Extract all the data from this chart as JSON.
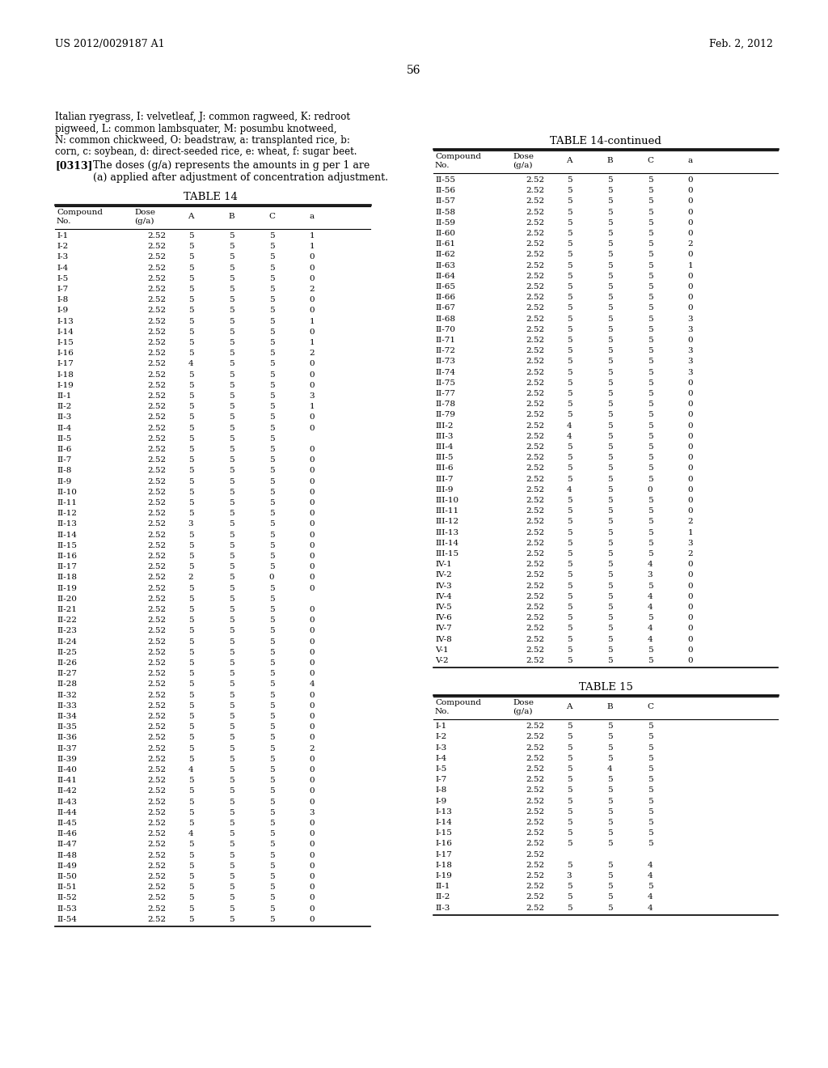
{
  "header_left": "US 2012/0029187 A1",
  "header_right": "Feb. 2, 2012",
  "page_number": "56",
  "intro_text": "Italian ryegrass, I: velvetleaf, J: common ragweed, K: redroot\npigweed, L: common lambsquater, M: posumbu knotweed,\nN: common chickweed, O: beadstraw, a: transplanted rice, b:\ncorn, c: soybean, d: direct-seeded rice, e: wheat, f: sugar beet.",
  "paragraph_label": "[0313]",
  "paragraph_text": "The doses (g/a) represents the amounts in g per 1 are\n(a) applied after adjustment of concentration adjustment.",
  "table14_title": "TABLE 14",
  "table14_data": [
    [
      "I-1",
      "2.52",
      "5",
      "5",
      "5",
      "1"
    ],
    [
      "I-2",
      "2.52",
      "5",
      "5",
      "5",
      "1"
    ],
    [
      "I-3",
      "2.52",
      "5",
      "5",
      "5",
      "0"
    ],
    [
      "I-4",
      "2.52",
      "5",
      "5",
      "5",
      "0"
    ],
    [
      "I-5",
      "2.52",
      "5",
      "5",
      "5",
      "0"
    ],
    [
      "I-7",
      "2.52",
      "5",
      "5",
      "5",
      "2"
    ],
    [
      "I-8",
      "2.52",
      "5",
      "5",
      "5",
      "0"
    ],
    [
      "I-9",
      "2.52",
      "5",
      "5",
      "5",
      "0"
    ],
    [
      "I-13",
      "2.52",
      "5",
      "5",
      "5",
      "1"
    ],
    [
      "I-14",
      "2.52",
      "5",
      "5",
      "5",
      "0"
    ],
    [
      "I-15",
      "2.52",
      "5",
      "5",
      "5",
      "1"
    ],
    [
      "I-16",
      "2.52",
      "5",
      "5",
      "5",
      "2"
    ],
    [
      "I-17",
      "2.52",
      "4",
      "5",
      "5",
      "0"
    ],
    [
      "I-18",
      "2.52",
      "5",
      "5",
      "5",
      "0"
    ],
    [
      "I-19",
      "2.52",
      "5",
      "5",
      "5",
      "0"
    ],
    [
      "II-1",
      "2.52",
      "5",
      "5",
      "5",
      "3"
    ],
    [
      "II-2",
      "2.52",
      "5",
      "5",
      "5",
      "1"
    ],
    [
      "II-3",
      "2.52",
      "5",
      "5",
      "5",
      "0"
    ],
    [
      "II-4",
      "2.52",
      "5",
      "5",
      "5",
      "0"
    ],
    [
      "II-5",
      "2.52",
      "5",
      "5",
      "5",
      ""
    ],
    [
      "II-6",
      "2.52",
      "5",
      "5",
      "5",
      "0"
    ],
    [
      "II-7",
      "2.52",
      "5",
      "5",
      "5",
      "0"
    ],
    [
      "II-8",
      "2.52",
      "5",
      "5",
      "5",
      "0"
    ],
    [
      "II-9",
      "2.52",
      "5",
      "5",
      "5",
      "0"
    ],
    [
      "II-10",
      "2.52",
      "5",
      "5",
      "5",
      "0"
    ],
    [
      "II-11",
      "2.52",
      "5",
      "5",
      "5",
      "0"
    ],
    [
      "II-12",
      "2.52",
      "5",
      "5",
      "5",
      "0"
    ],
    [
      "II-13",
      "2.52",
      "3",
      "5",
      "5",
      "0"
    ],
    [
      "II-14",
      "2.52",
      "5",
      "5",
      "5",
      "0"
    ],
    [
      "II-15",
      "2.52",
      "5",
      "5",
      "5",
      "0"
    ],
    [
      "II-16",
      "2.52",
      "5",
      "5",
      "5",
      "0"
    ],
    [
      "II-17",
      "2.52",
      "5",
      "5",
      "5",
      "0"
    ],
    [
      "II-18",
      "2.52",
      "2",
      "5",
      "0",
      "0"
    ],
    [
      "II-19",
      "2.52",
      "5",
      "5",
      "5",
      "0"
    ],
    [
      "II-20",
      "2.52",
      "5",
      "5",
      "5",
      ""
    ],
    [
      "II-21",
      "2.52",
      "5",
      "5",
      "5",
      "0"
    ],
    [
      "II-22",
      "2.52",
      "5",
      "5",
      "5",
      "0"
    ],
    [
      "II-23",
      "2.52",
      "5",
      "5",
      "5",
      "0"
    ],
    [
      "II-24",
      "2.52",
      "5",
      "5",
      "5",
      "0"
    ],
    [
      "II-25",
      "2.52",
      "5",
      "5",
      "5",
      "0"
    ],
    [
      "II-26",
      "2.52",
      "5",
      "5",
      "5",
      "0"
    ],
    [
      "II-27",
      "2.52",
      "5",
      "5",
      "5",
      "0"
    ],
    [
      "II-28",
      "2.52",
      "5",
      "5",
      "5",
      "4"
    ],
    [
      "II-32",
      "2.52",
      "5",
      "5",
      "5",
      "0"
    ],
    [
      "II-33",
      "2.52",
      "5",
      "5",
      "5",
      "0"
    ],
    [
      "II-34",
      "2.52",
      "5",
      "5",
      "5",
      "0"
    ],
    [
      "II-35",
      "2.52",
      "5",
      "5",
      "5",
      "0"
    ],
    [
      "II-36",
      "2.52",
      "5",
      "5",
      "5",
      "0"
    ],
    [
      "II-37",
      "2.52",
      "5",
      "5",
      "5",
      "2"
    ],
    [
      "II-39",
      "2.52",
      "5",
      "5",
      "5",
      "0"
    ],
    [
      "II-40",
      "2.52",
      "4",
      "5",
      "5",
      "0"
    ],
    [
      "II-41",
      "2.52",
      "5",
      "5",
      "5",
      "0"
    ],
    [
      "II-42",
      "2.52",
      "5",
      "5",
      "5",
      "0"
    ],
    [
      "II-43",
      "2.52",
      "5",
      "5",
      "5",
      "0"
    ],
    [
      "II-44",
      "2.52",
      "5",
      "5",
      "5",
      "3"
    ],
    [
      "II-45",
      "2.52",
      "5",
      "5",
      "5",
      "0"
    ],
    [
      "II-46",
      "2.52",
      "4",
      "5",
      "5",
      "0"
    ],
    [
      "II-47",
      "2.52",
      "5",
      "5",
      "5",
      "0"
    ],
    [
      "II-48",
      "2.52",
      "5",
      "5",
      "5",
      "0"
    ],
    [
      "II-49",
      "2.52",
      "5",
      "5",
      "5",
      "0"
    ],
    [
      "II-50",
      "2.52",
      "5",
      "5",
      "5",
      "0"
    ],
    [
      "II-51",
      "2.52",
      "5",
      "5",
      "5",
      "0"
    ],
    [
      "II-52",
      "2.52",
      "5",
      "5",
      "5",
      "0"
    ],
    [
      "II-53",
      "2.52",
      "5",
      "5",
      "5",
      "0"
    ],
    [
      "II-54",
      "2.52",
      "5",
      "5",
      "5",
      "0"
    ]
  ],
  "table14cont_title": "TABLE 14-continued",
  "table14cont_data": [
    [
      "II-55",
      "2.52",
      "5",
      "5",
      "5",
      "0"
    ],
    [
      "II-56",
      "2.52",
      "5",
      "5",
      "5",
      "0"
    ],
    [
      "II-57",
      "2.52",
      "5",
      "5",
      "5",
      "0"
    ],
    [
      "II-58",
      "2.52",
      "5",
      "5",
      "5",
      "0"
    ],
    [
      "II-59",
      "2.52",
      "5",
      "5",
      "5",
      "0"
    ],
    [
      "II-60",
      "2.52",
      "5",
      "5",
      "5",
      "0"
    ],
    [
      "II-61",
      "2.52",
      "5",
      "5",
      "5",
      "2"
    ],
    [
      "II-62",
      "2.52",
      "5",
      "5",
      "5",
      "0"
    ],
    [
      "II-63",
      "2.52",
      "5",
      "5",
      "5",
      "1"
    ],
    [
      "II-64",
      "2.52",
      "5",
      "5",
      "5",
      "0"
    ],
    [
      "II-65",
      "2.52",
      "5",
      "5",
      "5",
      "0"
    ],
    [
      "II-66",
      "2.52",
      "5",
      "5",
      "5",
      "0"
    ],
    [
      "II-67",
      "2.52",
      "5",
      "5",
      "5",
      "0"
    ],
    [
      "II-68",
      "2.52",
      "5",
      "5",
      "5",
      "3"
    ],
    [
      "II-70",
      "2.52",
      "5",
      "5",
      "5",
      "3"
    ],
    [
      "II-71",
      "2.52",
      "5",
      "5",
      "5",
      "0"
    ],
    [
      "II-72",
      "2.52",
      "5",
      "5",
      "5",
      "3"
    ],
    [
      "II-73",
      "2.52",
      "5",
      "5",
      "5",
      "3"
    ],
    [
      "II-74",
      "2.52",
      "5",
      "5",
      "5",
      "3"
    ],
    [
      "II-75",
      "2.52",
      "5",
      "5",
      "5",
      "0"
    ],
    [
      "II-77",
      "2.52",
      "5",
      "5",
      "5",
      "0"
    ],
    [
      "II-78",
      "2.52",
      "5",
      "5",
      "5",
      "0"
    ],
    [
      "II-79",
      "2.52",
      "5",
      "5",
      "5",
      "0"
    ],
    [
      "III-2",
      "2.52",
      "4",
      "5",
      "5",
      "0"
    ],
    [
      "III-3",
      "2.52",
      "4",
      "5",
      "5",
      "0"
    ],
    [
      "III-4",
      "2.52",
      "5",
      "5",
      "5",
      "0"
    ],
    [
      "III-5",
      "2.52",
      "5",
      "5",
      "5",
      "0"
    ],
    [
      "III-6",
      "2.52",
      "5",
      "5",
      "5",
      "0"
    ],
    [
      "III-7",
      "2.52",
      "5",
      "5",
      "5",
      "0"
    ],
    [
      "III-9",
      "2.52",
      "4",
      "5",
      "0",
      "0"
    ],
    [
      "III-10",
      "2.52",
      "5",
      "5",
      "5",
      "0"
    ],
    [
      "III-11",
      "2.52",
      "5",
      "5",
      "5",
      "0"
    ],
    [
      "III-12",
      "2.52",
      "5",
      "5",
      "5",
      "2"
    ],
    [
      "III-13",
      "2.52",
      "5",
      "5",
      "5",
      "1"
    ],
    [
      "III-14",
      "2.52",
      "5",
      "5",
      "5",
      "3"
    ],
    [
      "III-15",
      "2.52",
      "5",
      "5",
      "5",
      "2"
    ],
    [
      "IV-1",
      "2.52",
      "5",
      "5",
      "4",
      "0"
    ],
    [
      "IV-2",
      "2.52",
      "5",
      "5",
      "3",
      "0"
    ],
    [
      "IV-3",
      "2.52",
      "5",
      "5",
      "5",
      "0"
    ],
    [
      "IV-4",
      "2.52",
      "5",
      "5",
      "4",
      "0"
    ],
    [
      "IV-5",
      "2.52",
      "5",
      "5",
      "4",
      "0"
    ],
    [
      "IV-6",
      "2.52",
      "5",
      "5",
      "5",
      "0"
    ],
    [
      "IV-7",
      "2.52",
      "5",
      "5",
      "4",
      "0"
    ],
    [
      "IV-8",
      "2.52",
      "5",
      "5",
      "4",
      "0"
    ],
    [
      "V-1",
      "2.52",
      "5",
      "5",
      "5",
      "0"
    ],
    [
      "V-2",
      "2.52",
      "5",
      "5",
      "5",
      "0"
    ]
  ],
  "table15_title": "TABLE 15",
  "table15_data": [
    [
      "I-1",
      "2.52",
      "5",
      "5",
      "5"
    ],
    [
      "I-2",
      "2.52",
      "5",
      "5",
      "5"
    ],
    [
      "I-3",
      "2.52",
      "5",
      "5",
      "5"
    ],
    [
      "I-4",
      "2.52",
      "5",
      "5",
      "5"
    ],
    [
      "I-5",
      "2.52",
      "5",
      "4",
      "5"
    ],
    [
      "I-7",
      "2.52",
      "5",
      "5",
      "5"
    ],
    [
      "I-8",
      "2.52",
      "5",
      "5",
      "5"
    ],
    [
      "I-9",
      "2.52",
      "5",
      "5",
      "5"
    ],
    [
      "I-13",
      "2.52",
      "5",
      "5",
      "5"
    ],
    [
      "I-14",
      "2.52",
      "5",
      "5",
      "5"
    ],
    [
      "I-15",
      "2.52",
      "5",
      "5",
      "5"
    ],
    [
      "I-16",
      "2.52",
      "5",
      "5",
      "5"
    ],
    [
      "I-17",
      "2.52",
      "",
      "",
      ""
    ],
    [
      "I-18",
      "2.52",
      "5",
      "5",
      "4"
    ],
    [
      "I-19",
      "2.52",
      "3",
      "5",
      "4"
    ],
    [
      "II-1",
      "2.52",
      "5",
      "5",
      "5"
    ],
    [
      "II-2",
      "2.52",
      "5",
      "5",
      "4"
    ],
    [
      "II-3",
      "2.52",
      "5",
      "5",
      "4"
    ]
  ]
}
